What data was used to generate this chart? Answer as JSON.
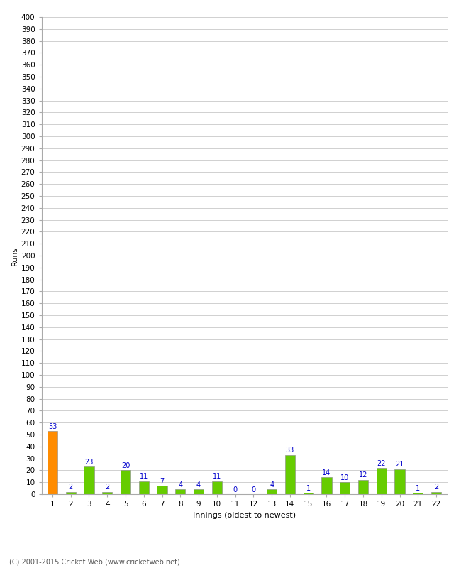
{
  "xlabel": "Innings (oldest to newest)",
  "ylabel": "Runs",
  "categories": [
    1,
    2,
    3,
    4,
    5,
    6,
    7,
    8,
    9,
    10,
    11,
    12,
    13,
    14,
    15,
    16,
    17,
    18,
    19,
    20,
    21,
    22
  ],
  "values": [
    53,
    2,
    23,
    2,
    20,
    11,
    7,
    4,
    4,
    11,
    0,
    0,
    4,
    33,
    1,
    14,
    10,
    12,
    22,
    21,
    1,
    2
  ],
  "bar_colors": [
    "#ff8c00",
    "#66cc00",
    "#66cc00",
    "#66cc00",
    "#66cc00",
    "#66cc00",
    "#66cc00",
    "#66cc00",
    "#66cc00",
    "#66cc00",
    "#66cc00",
    "#66cc00",
    "#66cc00",
    "#66cc00",
    "#66cc00",
    "#66cc00",
    "#66cc00",
    "#66cc00",
    "#66cc00",
    "#66cc00",
    "#66cc00",
    "#66cc00"
  ],
  "ylim": [
    0,
    400
  ],
  "yticks": [
    0,
    10,
    20,
    30,
    40,
    50,
    60,
    70,
    80,
    90,
    100,
    110,
    120,
    130,
    140,
    150,
    160,
    170,
    180,
    190,
    200,
    210,
    220,
    230,
    240,
    250,
    260,
    270,
    280,
    290,
    300,
    310,
    320,
    330,
    340,
    350,
    360,
    370,
    380,
    390,
    400
  ],
  "label_color": "#0000cc",
  "grid_color": "#d0d0d0",
  "background_color": "#ffffff",
  "footer": "(C) 2001-2015 Cricket Web (www.cricketweb.net)",
  "title_fontsize": 10,
  "axis_label_fontsize": 8,
  "tick_fontsize": 7.5,
  "bar_label_fontsize": 7,
  "bar_width": 0.55
}
